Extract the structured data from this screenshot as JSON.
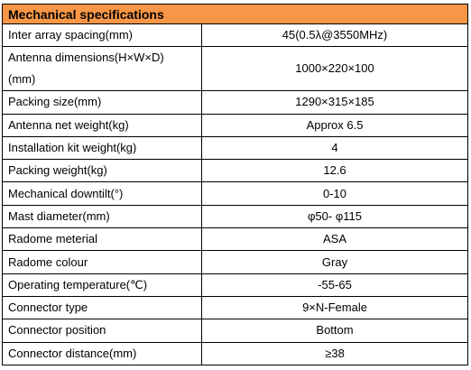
{
  "table": {
    "title": "Mechanical specifications",
    "rows": [
      {
        "label": "Inter array spacing(mm)",
        "value": "45(0.5λ@3550MHz)"
      },
      {
        "label": "Antenna dimensions(H×W×D)(mm)",
        "label_line1": "Antenna dimensions(H×W×D)",
        "label_line2": "(mm)",
        "value": "1000×220×100"
      },
      {
        "label": "Packing size(mm)",
        "value": "1290×315×185"
      },
      {
        "label": "Antenna net weight(kg)",
        "value": "Approx 6.5"
      },
      {
        "label": "Installation kit weight(kg)",
        "value": "4"
      },
      {
        "label": "Packing weight(kg)",
        "value": "12.6"
      },
      {
        "label": "Mechanical downtilt(°)",
        "value": "0-10"
      },
      {
        "label": "Mast diameter(mm)",
        "value": "φ50- φ115"
      },
      {
        "label": "Radome meterial",
        "value": "ASA"
      },
      {
        "label": "Radome colour",
        "value": "Gray"
      },
      {
        "label": "Operating temperature(℃)",
        "value": "-55-65"
      },
      {
        "label": "Connector type",
        "value": "9×N-Female"
      },
      {
        "label": "Connector position",
        "value": "Bottom"
      },
      {
        "label": "Connector distance(mm)",
        "value": "≥38"
      }
    ]
  },
  "colors": {
    "header_fill": "#f79646",
    "border": "#000000"
  }
}
